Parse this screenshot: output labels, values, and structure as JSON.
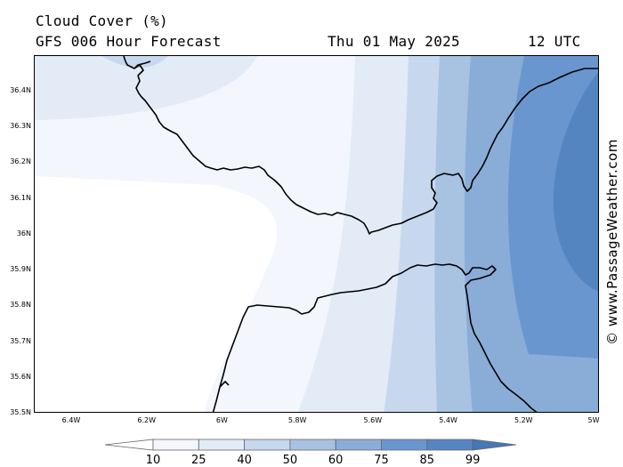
{
  "header": {
    "title": "Cloud Cover (%)",
    "model": "GFS 006 Hour Forecast",
    "date": "Thu 01 May 2025",
    "time": "12 UTC"
  },
  "watermark": "© www.PassageWeather.com",
  "axes": {
    "lat_labels": [
      "36.4N",
      "36.3N",
      "36.2N",
      "36.1N",
      "36N",
      "35.9N",
      "35.8N",
      "35.7N",
      "35.6N",
      "35.5N"
    ],
    "lon_labels": [
      "6.4W",
      "6.2W",
      "6W",
      "5.8W",
      "5.6W",
      "5.4W",
      "5.2W",
      "5W"
    ]
  },
  "legend": {
    "ticks": [
      "10",
      "25",
      "40",
      "50",
      "60",
      "75",
      "85",
      "99"
    ],
    "colors": [
      "#ffffff",
      "#f3f7fd",
      "#e3ebf6",
      "#c7d8ee",
      "#a8c2e2",
      "#8aadd8",
      "#6a96cf",
      "#5585c1",
      "#4677b6"
    ]
  }
}
